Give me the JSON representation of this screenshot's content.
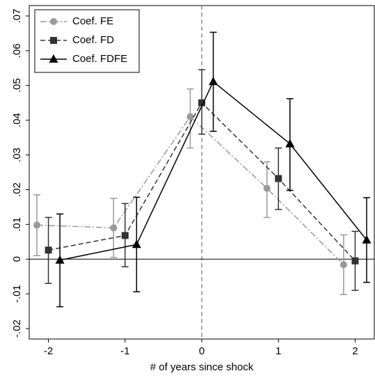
{
  "chart_data": {
    "type": "errorbar-line",
    "x_label": "# of years since shock",
    "xlim": [
      -2.25,
      2.25
    ],
    "xticks": [
      -2,
      -1,
      0,
      1,
      2
    ],
    "ylim": [
      -0.023,
      0.073
    ],
    "yticks": [
      {
        "value": -0.02,
        "label": "-.02"
      },
      {
        "value": -0.01,
        "label": "-.01"
      },
      0,
      {
        "value": 0.01,
        "label": ".01"
      },
      {
        "value": 0.02,
        "label": ".02"
      },
      {
        "value": 0.03,
        "label": ".03"
      },
      {
        "value": 0.04,
        "label": ".04"
      },
      {
        "value": 0.05,
        "label": ".05"
      },
      {
        "value": 0.06,
        "label": ".06"
      },
      {
        "value": 0.07,
        "label": ".07"
      }
    ],
    "vline": 0,
    "hline": 0,
    "legend": "top-left",
    "series": [
      {
        "name": "Coef. FE",
        "color": "#999999",
        "marker": "circle",
        "dash": "9,3,2,3",
        "x": [
          -2.15,
          -1.15,
          -0.15,
          0.85,
          1.85
        ],
        "values": [
          0.0098,
          0.009,
          0.041,
          0.0204,
          -0.0016
        ],
        "lower": [
          0.001,
          0.0005,
          0.032,
          0.012,
          -0.0102
        ],
        "upper": [
          0.0185,
          0.0175,
          0.049,
          0.028,
          0.007
        ]
      },
      {
        "name": "Coef. FD",
        "color": "#333333",
        "marker": "square",
        "dash": "7,4",
        "x": [
          -2,
          -1,
          0,
          1,
          2
        ],
        "values": [
          0.0026,
          0.0068,
          0.045,
          0.0232,
          -0.0005
        ],
        "lower": [
          -0.007,
          -0.0022,
          0.036,
          0.0143,
          -0.009
        ],
        "upper": [
          0.012,
          0.016,
          0.0545,
          0.032,
          0.008
        ]
      },
      {
        "name": "Coef. FDFE",
        "color": "#000000",
        "marker": "triangle",
        "dash": "none",
        "x": [
          -1.85,
          -0.85,
          0.15,
          1.15,
          2.15
        ],
        "values": [
          -0.0003,
          0.0042,
          0.0511,
          0.0332,
          0.0055
        ],
        "lower": [
          -0.0137,
          -0.0094,
          0.0368,
          0.0198,
          -0.0067
        ],
        "upper": [
          0.013,
          0.0178,
          0.0653,
          0.0462,
          0.0177
        ]
      }
    ]
  }
}
